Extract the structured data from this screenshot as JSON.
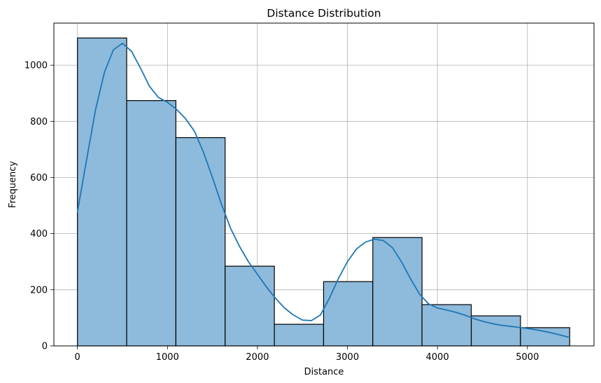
{
  "chart_data": {
    "type": "bar",
    "title": "Distance Distribution",
    "xlabel": "Distance",
    "ylabel": "Frequency",
    "xlim": [
      -262,
      5740
    ],
    "ylim": [
      0,
      1150
    ],
    "grid": true,
    "xticks": [
      0,
      1000,
      2000,
      3000,
      4000,
      5000
    ],
    "yticks": [
      0,
      200,
      400,
      600,
      800,
      1000
    ],
    "bin_edges": [
      0,
      547,
      1094,
      1641,
      2188,
      2735,
      3282,
      3829,
      4376,
      4923,
      5470
    ],
    "counts": [
      1097,
      874,
      742,
      284,
      77,
      229,
      386,
      147,
      107,
      65
    ],
    "bar_color": "#8ebadb",
    "bar_edge_color": "#000000",
    "kde": {
      "color": "#1f77b4",
      "x": [
        0,
        100,
        200,
        300,
        400,
        500,
        600,
        700,
        800,
        900,
        1000,
        1100,
        1200,
        1300,
        1400,
        1500,
        1600,
        1700,
        1800,
        1900,
        2000,
        2100,
        2200,
        2300,
        2400,
        2500,
        2600,
        2700,
        2800,
        2900,
        3000,
        3100,
        3200,
        3300,
        3400,
        3500,
        3600,
        3700,
        3800,
        3900,
        4000,
        4100,
        4200,
        4300,
        4400,
        4500,
        4600,
        4700,
        4800,
        4900,
        5000,
        5100,
        5200,
        5300,
        5400,
        5470
      ],
      "y": [
        478,
        660,
        840,
        975,
        1055,
        1078,
        1050,
        990,
        925,
        885,
        868,
        843,
        810,
        765,
        690,
        600,
        505,
        420,
        355,
        300,
        255,
        210,
        170,
        135,
        110,
        92,
        90,
        110,
        170,
        240,
        300,
        345,
        370,
        380,
        375,
        350,
        300,
        240,
        185,
        150,
        135,
        128,
        120,
        110,
        98,
        88,
        80,
        74,
        70,
        66,
        62,
        57,
        51,
        44,
        36,
        30
      ]
    }
  }
}
